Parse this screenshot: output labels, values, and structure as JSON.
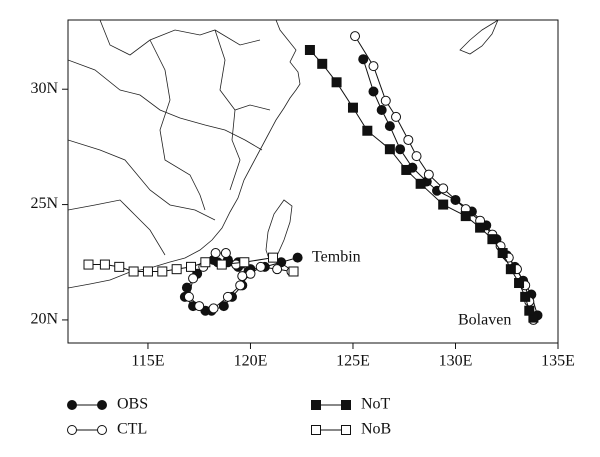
{
  "chart_data": {
    "type": "line",
    "xlim": [
      111.1,
      135
    ],
    "ylim": [
      19,
      33
    ],
    "xticks": [
      {
        "value": 115,
        "label": "115E"
      },
      {
        "value": 120,
        "label": "120E"
      },
      {
        "value": 125,
        "label": "125E"
      },
      {
        "value": 130,
        "label": "130E"
      },
      {
        "value": 135,
        "label": "135E"
      }
    ],
    "yticks": [
      {
        "value": 20,
        "label": "20N"
      },
      {
        "value": 25,
        "label": "25N"
      },
      {
        "value": 30,
        "label": "30N"
      }
    ],
    "annotations": [
      "Tembin",
      "Bolaven"
    ],
    "series": [
      {
        "name": "OBS",
        "color": "#111111",
        "marker": "circle-filled",
        "x": [
          122.3,
          121.5,
          120.7,
          120.0,
          119.4,
          118.9,
          118.2,
          117.4,
          116.9,
          116.8,
          117.2,
          117.8,
          118.1,
          118.7,
          119.1,
          119.6,
          119.9,
          119.4,
          118.9,
          118.4,
          null,
          134.0,
          133.7,
          133.3,
          132.9,
          132.5,
          132.0,
          131.5,
          130.8,
          130.0,
          129.1,
          128.6,
          127.9,
          127.3,
          126.8,
          126.4,
          126.0,
          125.5
        ],
        "values": [
          22.7,
          22.5,
          22.3,
          22.2,
          22.3,
          22.5,
          22.6,
          22.0,
          21.4,
          21.0,
          20.6,
          20.4,
          20.4,
          20.6,
          21.0,
          21.5,
          22.1,
          22.5,
          22.6,
          22.5,
          null,
          20.2,
          21.1,
          21.7,
          22.3,
          22.8,
          23.5,
          24.1,
          24.7,
          25.2,
          25.6,
          26.0,
          26.6,
          27.4,
          28.4,
          29.1,
          29.9,
          31.3
        ]
      },
      {
        "name": "CTL",
        "color": "#111111",
        "marker": "circle-open",
        "x": [
          122.0,
          121.3,
          120.5,
          120.0,
          119.5,
          118.9,
          118.2,
          117.5,
          117.0,
          117.2,
          117.7,
          118.3,
          118.8,
          119.3,
          119.6,
          null,
          133.8,
          133.6,
          133.4,
          133.0,
          132.6,
          132.2,
          131.8,
          131.2,
          130.5,
          129.4,
          128.7,
          128.1,
          127.7,
          127.1,
          126.6,
          126.0,
          125.1
        ],
        "values": [
          22.1,
          22.2,
          22.3,
          22.0,
          21.5,
          21.0,
          20.5,
          20.6,
          21.0,
          21.8,
          22.3,
          22.9,
          22.9,
          22.4,
          21.9,
          null,
          20.0,
          20.8,
          21.5,
          22.2,
          22.7,
          23.2,
          23.7,
          24.3,
          24.8,
          25.7,
          26.3,
          27.1,
          27.8,
          28.8,
          29.5,
          31.0,
          32.3
        ]
      },
      {
        "name": "NoT",
        "color": "#111111",
        "marker": "square-filled",
        "x": [
          133.8,
          133.6,
          133.4,
          133.1,
          132.7,
          132.3,
          131.8,
          131.2,
          130.5,
          129.4,
          128.3,
          127.6,
          126.8,
          125.7,
          125.0,
          124.2,
          123.5,
          122.9
        ],
        "values": [
          20.1,
          20.4,
          21.0,
          21.6,
          22.2,
          22.9,
          23.5,
          24.0,
          24.5,
          25.0,
          25.9,
          26.5,
          27.4,
          28.2,
          29.2,
          30.3,
          31.1,
          31.7
        ]
      },
      {
        "name": "NoB",
        "color": "#111111",
        "marker": "square-open",
        "x": [
          122.1,
          121.1,
          119.7,
          118.6,
          117.8,
          117.1,
          116.4,
          115.7,
          115.0,
          114.3,
          113.6,
          112.9,
          112.1
        ],
        "values": [
          22.1,
          22.7,
          22.5,
          22.4,
          22.5,
          22.3,
          22.2,
          22.1,
          22.1,
          22.1,
          22.3,
          22.4,
          22.4
        ]
      }
    ]
  }
}
